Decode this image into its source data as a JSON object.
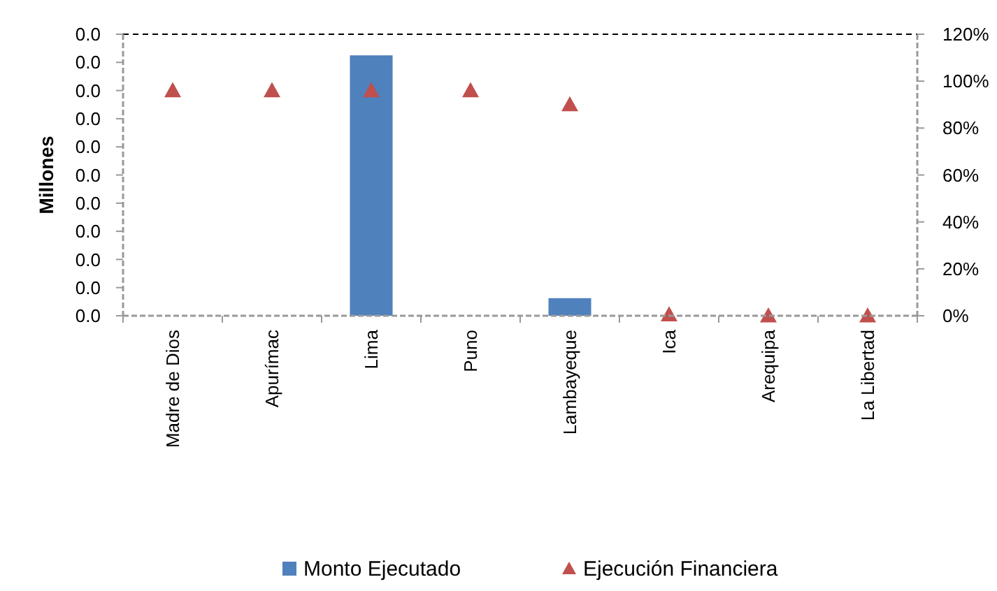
{
  "chart_data": {
    "type": "bar",
    "ylabel": "Millones",
    "categories": [
      "Madre de Dios",
      "Apurímac",
      "Lima",
      "Puno",
      "Lambayeque",
      "Ica",
      "Arequipa",
      "La Libertad"
    ],
    "series": [
      {
        "name": "Monto Ejecutado",
        "color": "#4f81bd",
        "values": [
          0,
          0,
          0.037,
          0,
          0.0025,
          0,
          0,
          0
        ]
      },
      {
        "name": "Ejecución Financiera",
        "type": "scatter",
        "axis": "y2",
        "marker": "triangle",
        "color": "#c0504d",
        "values": [
          96,
          96,
          96,
          96,
          90,
          0.5,
          0,
          0
        ]
      }
    ],
    "ylim": [
      0,
      0.04
    ],
    "yticks": [
      {
        "value": 0,
        "label": "0.0"
      },
      {
        "value": 0.004,
        "label": "0.0"
      },
      {
        "value": 0.008,
        "label": "0.0"
      },
      {
        "value": 0.012,
        "label": "0.0"
      },
      {
        "value": 0.016,
        "label": "0.0"
      },
      {
        "value": 0.02,
        "label": "0.0"
      },
      {
        "value": 0.024,
        "label": "0.0"
      },
      {
        "value": 0.028,
        "label": "0.0"
      },
      {
        "value": 0.032,
        "label": "0.0"
      },
      {
        "value": 0.036,
        "label": "0.0"
      },
      {
        "value": 0.04,
        "label": "0.0"
      }
    ],
    "y2lim": [
      0,
      120
    ],
    "y2ticks": [
      {
        "value": 0,
        "label": "0%"
      },
      {
        "value": 20,
        "label": "20%"
      },
      {
        "value": 40,
        "label": "40%"
      },
      {
        "value": 60,
        "label": "60%"
      },
      {
        "value": 80,
        "label": "80%"
      },
      {
        "value": 100,
        "label": "100%"
      },
      {
        "value": 120,
        "label": "120%"
      }
    ],
    "grid": false,
    "legend": "bottom"
  }
}
